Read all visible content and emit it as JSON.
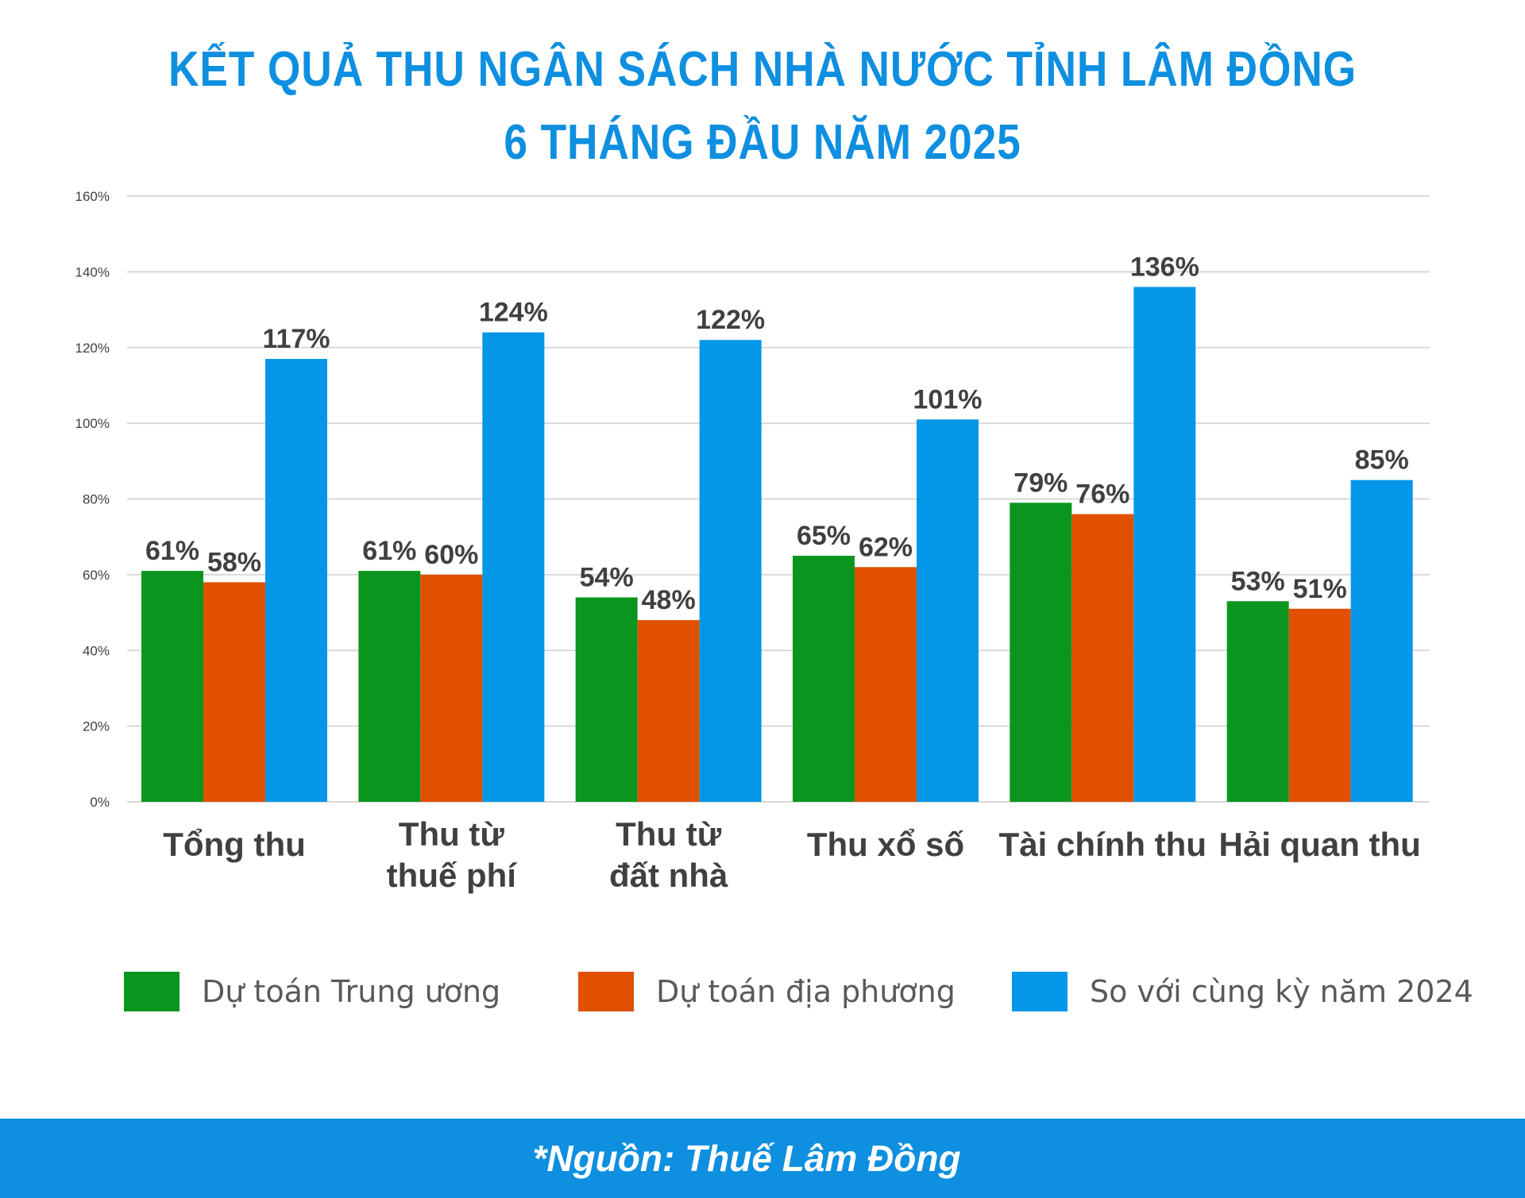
{
  "title_line1": "KẾT QUẢ THU NGÂN SÁCH NHÀ NƯỚC TỈNH LÂM ĐỒNG",
  "title_line2": "6 THÁNG ĐẦU NĂM 2025",
  "footer": "*Nguồn: Thuế Lâm Đồng",
  "chart_data": {
    "type": "bar",
    "categories": [
      [
        "Tổng thu"
      ],
      [
        "Thu từ",
        "thuế phí"
      ],
      [
        "Thu từ",
        "đất nhà"
      ],
      [
        "Thu xổ số"
      ],
      [
        "Tài chính thu"
      ],
      [
        "Hải quan thu"
      ]
    ],
    "series": [
      {
        "name": "Dự toán Trung ương",
        "color": "#0a961e",
        "values": [
          61,
          61,
          54,
          65,
          79,
          53
        ]
      },
      {
        "name": "Dự toán địa phương",
        "color": "#e05000",
        "values": [
          58,
          60,
          48,
          62,
          76,
          51
        ]
      },
      {
        "name": "So với cùng kỳ năm 2024",
        "color": "#0497e8",
        "values": [
          117,
          124,
          122,
          101,
          136,
          85
        ]
      }
    ],
    "value_suffix": "%",
    "ylim": [
      0,
      160
    ],
    "yticks": [
      0,
      20,
      40,
      60,
      80,
      100,
      120,
      140,
      160
    ],
    "grid": true,
    "legend_position": "bottom"
  }
}
